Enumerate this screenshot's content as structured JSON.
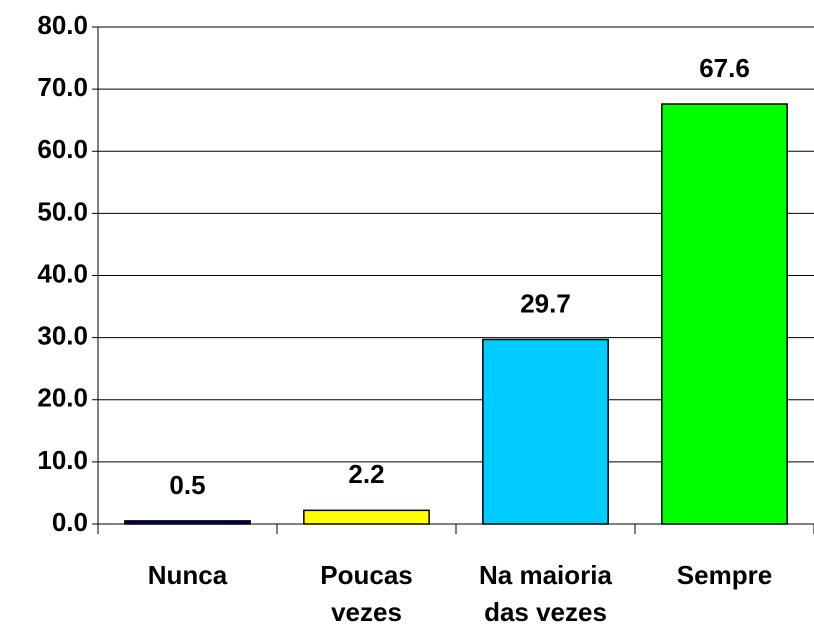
{
  "chart_data": {
    "type": "bar",
    "categories": [
      "Nunca",
      "Poucas vezes",
      "Na maioria das vezes",
      "Sempre"
    ],
    "values": [
      0.5,
      2.2,
      29.7,
      67.6
    ],
    "colors": [
      "#000066",
      "#ffff00",
      "#00ccff",
      "#00ff00"
    ],
    "ylim": [
      0,
      80
    ],
    "yticks": [
      {
        "value": 0,
        "label": "0.0"
      },
      {
        "value": 10,
        "label": "10.0"
      },
      {
        "value": 20,
        "label": "20.0"
      },
      {
        "value": 30,
        "label": "30.0"
      },
      {
        "value": 40,
        "label": "40.0"
      },
      {
        "value": 50,
        "label": "50.0"
      },
      {
        "value": 60,
        "label": "60.0"
      },
      {
        "value": 70,
        "label": "70.0"
      },
      {
        "value": 80,
        "label": "80.0"
      }
    ],
    "grid": true
  }
}
